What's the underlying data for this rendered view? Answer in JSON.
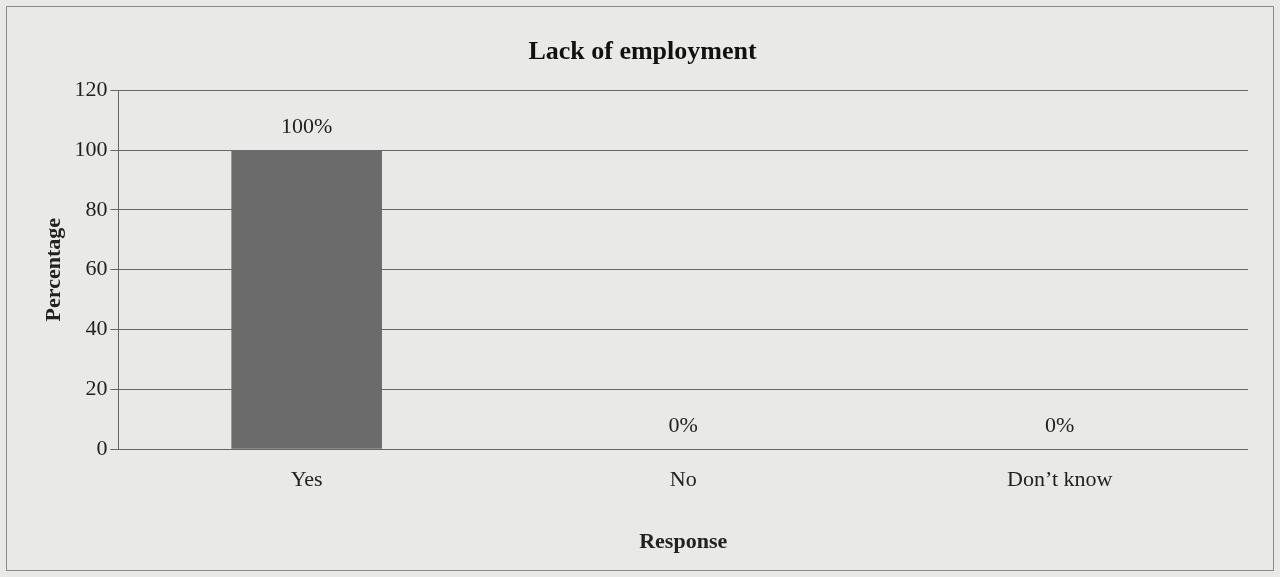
{
  "chart_data": {
    "type": "bar",
    "title": "Lack of employment",
    "xlabel": "Response",
    "ylabel": "Percentage",
    "categories": [
      "Yes",
      "No",
      "Don’t know"
    ],
    "values": [
      100,
      0,
      0
    ],
    "value_labels": [
      "100%",
      "0%",
      "0%"
    ],
    "color": "#6b6b6b",
    "ylim": [
      0,
      120
    ],
    "yticks": [
      0,
      20,
      40,
      60,
      80,
      100,
      120
    ],
    "grid": "y",
    "legend": false
  }
}
